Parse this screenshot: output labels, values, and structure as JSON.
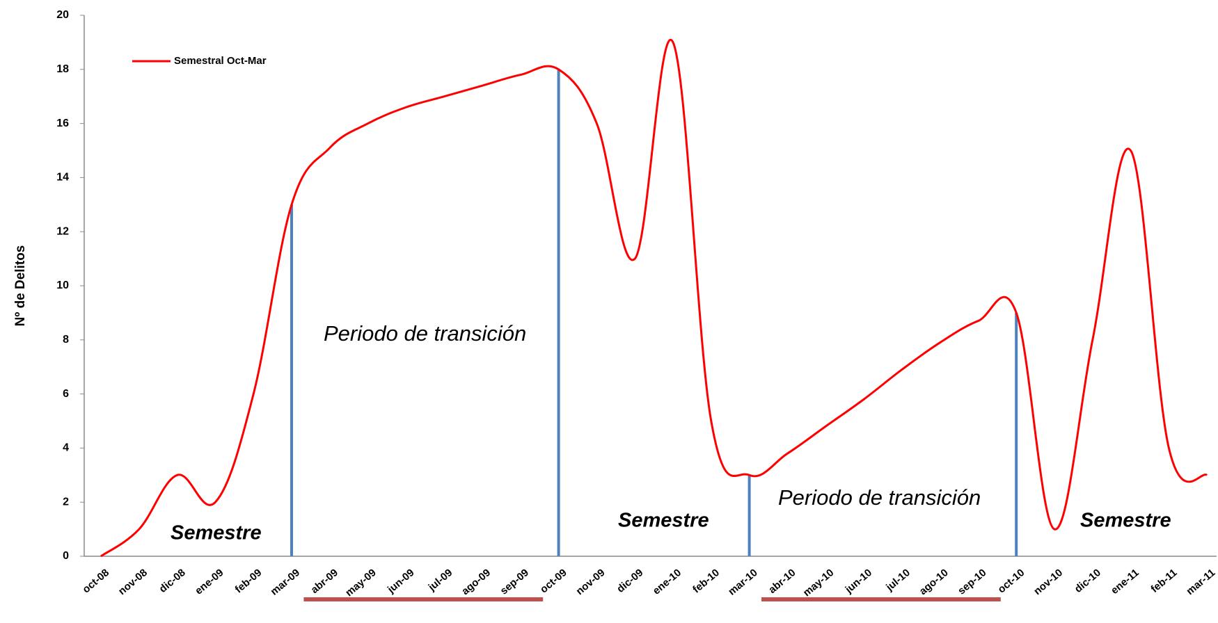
{
  "chart_data": {
    "type": "line",
    "y_label": "Nº de Delitos",
    "categories": [
      "oct-08",
      "nov-08",
      "dic-08",
      "ene-09",
      "feb-09",
      "mar-09",
      "abr-09",
      "may-09",
      "jun-09",
      "jul-09",
      "ago-09",
      "sep-09",
      "oct-09",
      "nov-09",
      "dic-09",
      "ene-10",
      "feb-10",
      "mar-10",
      "abr-10",
      "may-10",
      "jun-10",
      "jul-10",
      "ago-10",
      "sep-10",
      "oct-10",
      "nov-10",
      "dic-10",
      "ene-11",
      "feb-11",
      "mar-11"
    ],
    "series": [
      {
        "name": "Semestral Oct-Mar",
        "color": "#ff0000",
        "values": [
          0,
          1,
          3,
          2,
          6,
          13,
          15.1,
          16,
          16.6,
          17,
          17.4,
          17.8,
          18,
          16,
          11,
          19,
          5,
          3,
          3.8,
          4.8,
          5.8,
          6.9,
          7.9,
          8.7,
          9,
          1,
          8,
          15,
          4,
          3
        ]
      }
    ],
    "annotations": [
      "Periodo de transición",
      "Periodo de transición",
      "Semestre",
      "Semestre",
      "Semestre"
    ],
    "ylim": [
      0,
      20
    ],
    "yticks": [
      0,
      2,
      4,
      6,
      8,
      10,
      12,
      14,
      16,
      18,
      20
    ],
    "grid": false,
    "legend": "upper left"
  }
}
